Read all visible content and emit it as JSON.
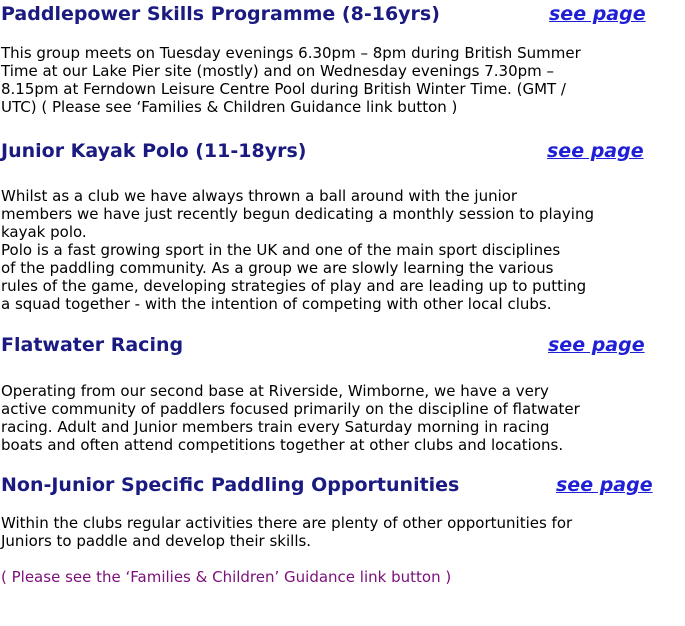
{
  "sections": [
    {
      "heading": "Paddlepower Skills Programme (8-16yrs)",
      "link": "see page",
      "lines": [
        "This group meets on Tuesday evenings 6.30pm – 8pm during British Summer",
        "Time at our Lake Pier site (mostly) and on Wednesday evenings 7.30pm –",
        "8.15pm at Ferndown Leisure Centre Pool during British Winter Time. (GMT /",
        "UTC) ( Please see ‘Families & Children Guidance link button )"
      ]
    },
    {
      "heading": "Junior Kayak Polo (11-18yrs)",
      "link": "see page",
      "lines": [
        "Whilst as a club we have always thrown a ball around with the junior",
        "members we have just recently begun dedicating a monthly session to playing",
        "kayak polo.",
        "Polo is a fast growing sport in the UK and one of the main sport disciplines",
        "of the paddling community.    As a group we are slowly learning the various",
        "rules of the game,  developing strategies of play and are leading up to putting",
        "a squad together  -  with the intention of competing with other local clubs."
      ]
    },
    {
      "heading": "Flatwater Racing",
      "link": "see page",
      "lines": [
        "Operating from our second base at Riverside, Wimborne, we have a very",
        "active community of paddlers focused primarily on the discipline of flatwater",
        "racing.    Adult and Junior members train every Saturday morning in racing",
        "boats and often attend competitions together at other clubs and locations."
      ]
    },
    {
      "heading": "Non-Junior Specific Paddling Opportunities",
      "link": "see page",
      "lines": [
        "Within the clubs regular activities there are plenty of other opportunities for",
        "Juniors to paddle and develop their skills."
      ]
    }
  ],
  "footer_note": "( Please see the ‘Families & Children’ Guidance link button )"
}
